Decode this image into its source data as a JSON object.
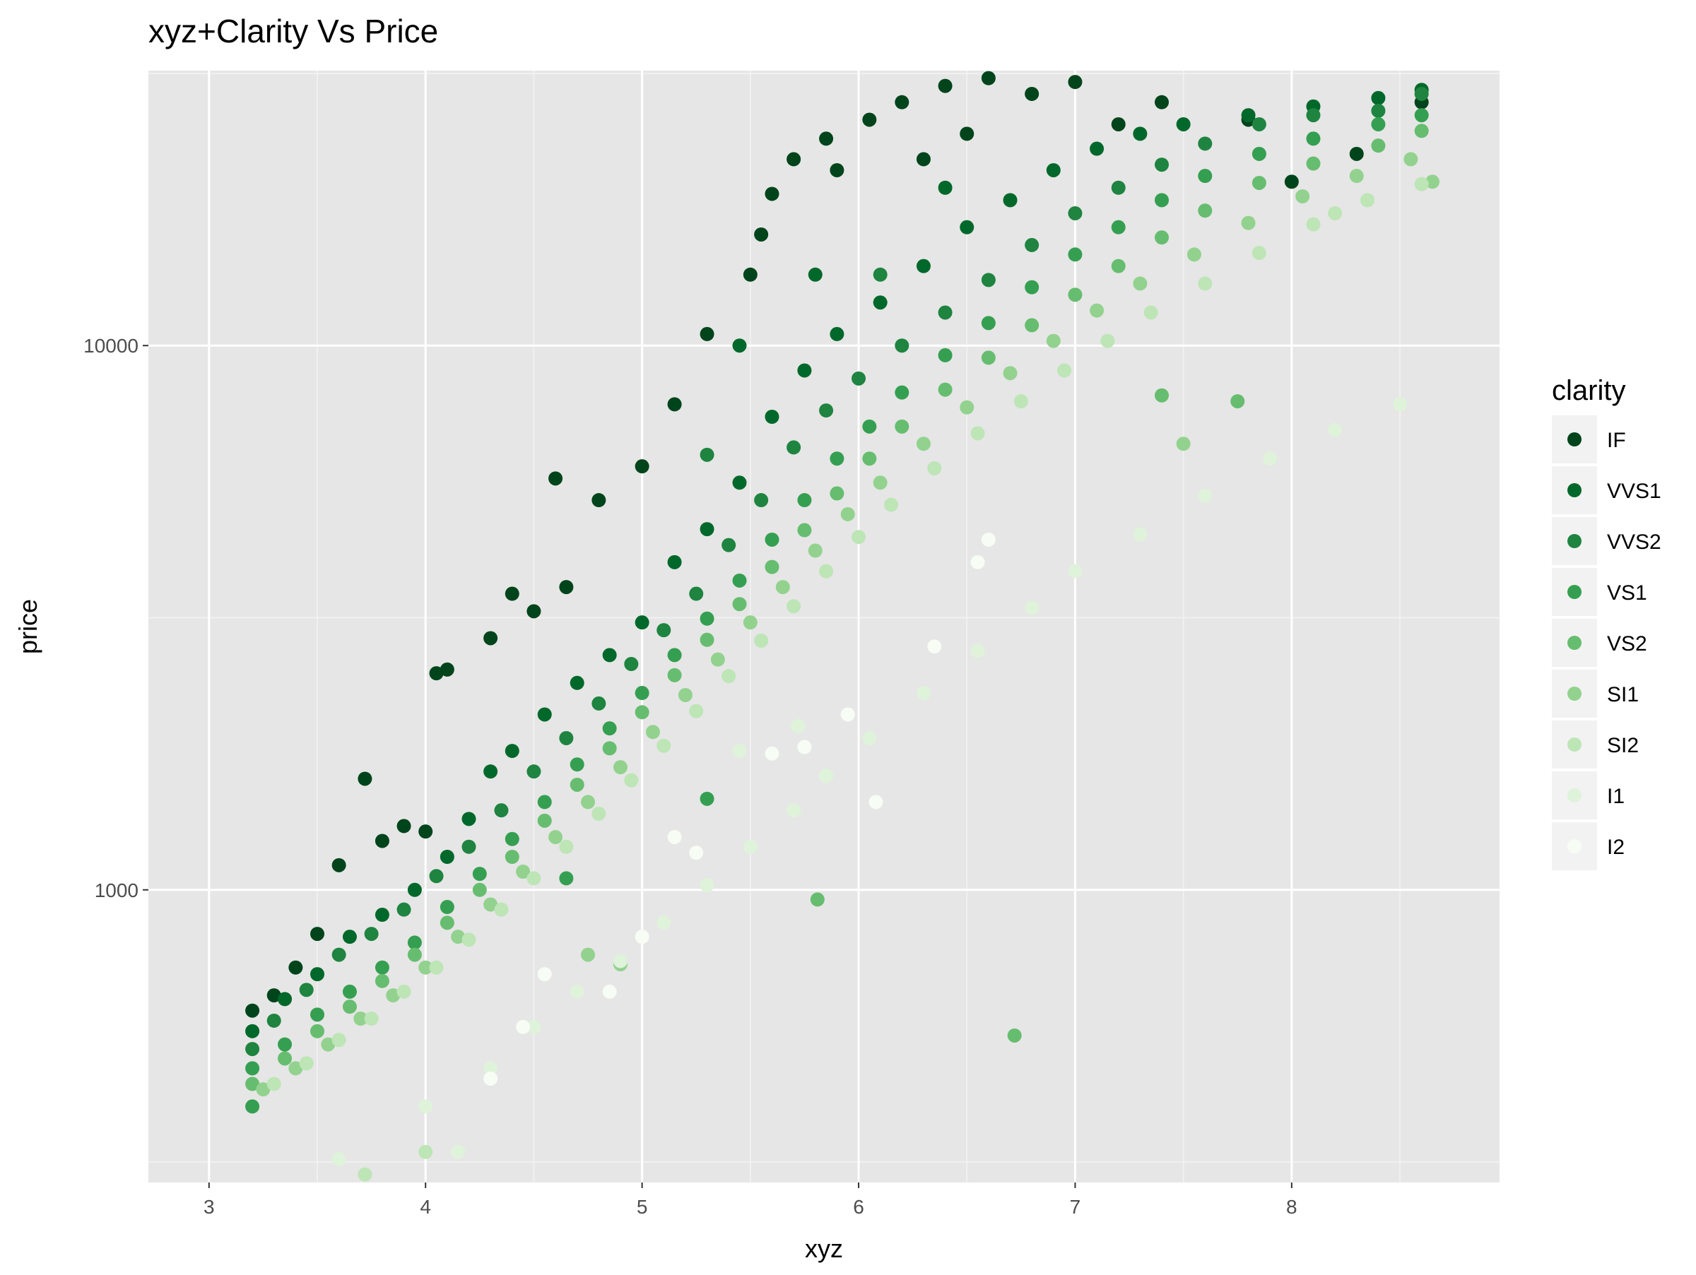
{
  "chart_data": {
    "type": "scatter",
    "title": "xyz+Clarity Vs Price",
    "xlabel": "xyz",
    "ylabel": "price",
    "xlim": [
      2.72,
      8.96
    ],
    "ylim": [
      290,
      32000
    ],
    "y_scale": "log10",
    "x_ticks": [
      "3",
      "4",
      "5",
      "6",
      "7",
      "8"
    ],
    "y_ticks": [
      "1000",
      "10000"
    ],
    "grid": true,
    "panel_background": "#e6e6e6",
    "legend": {
      "title": "clarity",
      "placement": "right",
      "entries": [
        "IF",
        "VVS1",
        "VVS2",
        "VS1",
        "VS2",
        "SI1",
        "SI2",
        "I1",
        "I2"
      ]
    },
    "colors": {
      "IF": "#00441b",
      "VVS1": "#00682a",
      "VVS2": "#1e8440",
      "VS1": "#359f51",
      "VS2": "#67bd6f",
      "SI1": "#92d28e",
      "SI2": "#bde5b6",
      "I1": "#def3da",
      "I2": "#f7fcf5"
    },
    "series": [
      {
        "name": "IF",
        "points": [
          [
            3.2,
            600
          ],
          [
            3.3,
            640
          ],
          [
            3.4,
            720
          ],
          [
            3.5,
            830
          ],
          [
            3.6,
            1110
          ],
          [
            3.72,
            1600
          ],
          [
            3.8,
            1230
          ],
          [
            3.9,
            1310
          ],
          [
            4.0,
            1280
          ],
          [
            4.05,
            2500
          ],
          [
            4.1,
            2540
          ],
          [
            4.3,
            2900
          ],
          [
            4.4,
            3500
          ],
          [
            4.5,
            3250
          ],
          [
            4.65,
            3600
          ],
          [
            4.6,
            5700
          ],
          [
            4.8,
            5200
          ],
          [
            5.0,
            6000
          ],
          [
            5.15,
            7800
          ],
          [
            5.3,
            10500
          ],
          [
            5.5,
            13500
          ],
          [
            5.55,
            16000
          ],
          [
            5.6,
            19000
          ],
          [
            5.7,
            22000
          ],
          [
            5.85,
            24000
          ],
          [
            6.05,
            26000
          ],
          [
            6.2,
            28000
          ],
          [
            6.4,
            30000
          ],
          [
            6.6,
            31000
          ],
          [
            6.8,
            29000
          ],
          [
            7.0,
            30500
          ],
          [
            7.4,
            28000
          ],
          [
            7.8,
            26000
          ],
          [
            8.0,
            20000
          ],
          [
            8.3,
            22500
          ],
          [
            8.6,
            28000
          ],
          [
            6.3,
            22000
          ],
          [
            5.9,
            21000
          ],
          [
            6.5,
            24500
          ],
          [
            7.2,
            25500
          ]
        ]
      },
      {
        "name": "VVS1",
        "points": [
          [
            3.2,
            550
          ],
          [
            3.35,
            630
          ],
          [
            3.5,
            700
          ],
          [
            3.65,
            820
          ],
          [
            3.8,
            900
          ],
          [
            3.95,
            1000
          ],
          [
            4.1,
            1150
          ],
          [
            4.2,
            1350
          ],
          [
            4.3,
            1650
          ],
          [
            4.4,
            1800
          ],
          [
            4.55,
            2100
          ],
          [
            4.7,
            2400
          ],
          [
            4.85,
            2700
          ],
          [
            5.0,
            3100
          ],
          [
            5.15,
            4000
          ],
          [
            5.3,
            4600
          ],
          [
            5.45,
            5600
          ],
          [
            5.6,
            7400
          ],
          [
            5.75,
            9000
          ],
          [
            5.9,
            10500
          ],
          [
            6.1,
            12000
          ],
          [
            6.3,
            14000
          ],
          [
            6.5,
            16500
          ],
          [
            6.7,
            18500
          ],
          [
            6.9,
            21000
          ],
          [
            7.1,
            23000
          ],
          [
            7.3,
            24500
          ],
          [
            7.5,
            25500
          ],
          [
            7.8,
            26500
          ],
          [
            8.1,
            27500
          ],
          [
            8.4,
            28500
          ],
          [
            8.6,
            29500
          ],
          [
            5.45,
            10000
          ],
          [
            5.8,
            13500
          ],
          [
            6.4,
            19500
          ]
        ]
      },
      {
        "name": "VVS2",
        "points": [
          [
            3.2,
            510
          ],
          [
            3.3,
            575
          ],
          [
            3.45,
            655
          ],
          [
            3.6,
            760
          ],
          [
            3.75,
            830
          ],
          [
            3.9,
            920
          ],
          [
            4.05,
            1060
          ],
          [
            4.2,
            1200
          ],
          [
            4.35,
            1400
          ],
          [
            4.5,
            1650
          ],
          [
            4.65,
            1900
          ],
          [
            4.8,
            2200
          ],
          [
            4.95,
            2600
          ],
          [
            5.1,
            3000
          ],
          [
            5.25,
            3500
          ],
          [
            5.4,
            4300
          ],
          [
            5.55,
            5200
          ],
          [
            5.7,
            6500
          ],
          [
            5.85,
            7600
          ],
          [
            6.0,
            8700
          ],
          [
            6.2,
            10000
          ],
          [
            6.4,
            11500
          ],
          [
            6.6,
            13200
          ],
          [
            6.8,
            15300
          ],
          [
            7.0,
            17500
          ],
          [
            7.2,
            19500
          ],
          [
            7.4,
            21500
          ],
          [
            7.6,
            23500
          ],
          [
            7.85,
            25500
          ],
          [
            8.1,
            26500
          ],
          [
            8.4,
            27000
          ],
          [
            8.6,
            29000
          ],
          [
            5.3,
            6300
          ],
          [
            6.1,
            13500
          ]
        ]
      },
      {
        "name": "VS1",
        "points": [
          [
            3.2,
            470
          ],
          [
            3.35,
            520
          ],
          [
            3.5,
            590
          ],
          [
            3.65,
            650
          ],
          [
            3.8,
            720
          ],
          [
            3.95,
            800
          ],
          [
            4.1,
            930
          ],
          [
            4.25,
            1070
          ],
          [
            4.4,
            1240
          ],
          [
            4.55,
            1450
          ],
          [
            4.7,
            1700
          ],
          [
            4.85,
            1980
          ],
          [
            5.0,
            2300
          ],
          [
            5.15,
            2700
          ],
          [
            5.3,
            3150
          ],
          [
            5.45,
            3700
          ],
          [
            5.6,
            4400
          ],
          [
            5.75,
            5200
          ],
          [
            5.9,
            6200
          ],
          [
            6.05,
            7100
          ],
          [
            6.2,
            8200
          ],
          [
            6.4,
            9600
          ],
          [
            6.6,
            11000
          ],
          [
            6.8,
            12800
          ],
          [
            7.0,
            14700
          ],
          [
            7.2,
            16500
          ],
          [
            7.4,
            18500
          ],
          [
            7.6,
            20500
          ],
          [
            7.85,
            22500
          ],
          [
            8.1,
            24000
          ],
          [
            8.4,
            25500
          ],
          [
            8.6,
            26500
          ],
          [
            5.3,
            1470
          ],
          [
            3.2,
            400
          ],
          [
            4.65,
            1050
          ]
        ]
      },
      {
        "name": "VS2",
        "points": [
          [
            3.2,
            440
          ],
          [
            3.35,
            490
          ],
          [
            3.5,
            550
          ],
          [
            3.65,
            610
          ],
          [
            3.8,
            680
          ],
          [
            3.95,
            760
          ],
          [
            4.1,
            870
          ],
          [
            4.25,
            1000
          ],
          [
            4.4,
            1150
          ],
          [
            4.55,
            1340
          ],
          [
            4.7,
            1560
          ],
          [
            4.85,
            1820
          ],
          [
            5.0,
            2120
          ],
          [
            5.15,
            2480
          ],
          [
            5.3,
            2880
          ],
          [
            5.45,
            3350
          ],
          [
            5.6,
            3920
          ],
          [
            5.75,
            4580
          ],
          [
            5.9,
            5350
          ],
          [
            6.05,
            6200
          ],
          [
            6.2,
            7100
          ],
          [
            6.4,
            8300
          ],
          [
            6.6,
            9500
          ],
          [
            6.8,
            10900
          ],
          [
            7.0,
            12400
          ],
          [
            7.2,
            14000
          ],
          [
            7.4,
            15800
          ],
          [
            7.6,
            17700
          ],
          [
            7.85,
            19900
          ],
          [
            8.1,
            21600
          ],
          [
            8.4,
            23300
          ],
          [
            8.6,
            24800
          ],
          [
            6.72,
            540
          ],
          [
            5.81,
            960
          ],
          [
            7.75,
            7900
          ],
          [
            7.4,
            8100
          ]
        ]
      },
      {
        "name": "SI1",
        "points": [
          [
            3.25,
            430
          ],
          [
            3.4,
            470
          ],
          [
            3.55,
            520
          ],
          [
            3.7,
            580
          ],
          [
            3.85,
            640
          ],
          [
            4.0,
            720
          ],
          [
            4.15,
            820
          ],
          [
            4.3,
            940
          ],
          [
            4.45,
            1080
          ],
          [
            4.6,
            1250
          ],
          [
            4.75,
            1450
          ],
          [
            4.9,
            1680
          ],
          [
            5.05,
            1950
          ],
          [
            5.2,
            2280
          ],
          [
            5.35,
            2650
          ],
          [
            5.5,
            3100
          ],
          [
            5.65,
            3600
          ],
          [
            5.8,
            4200
          ],
          [
            5.95,
            4900
          ],
          [
            6.1,
            5600
          ],
          [
            6.3,
            6600
          ],
          [
            6.5,
            7700
          ],
          [
            6.7,
            8900
          ],
          [
            6.9,
            10200
          ],
          [
            7.1,
            11600
          ],
          [
            7.3,
            13000
          ],
          [
            7.55,
            14700
          ],
          [
            7.8,
            16800
          ],
          [
            8.05,
            18800
          ],
          [
            8.3,
            20500
          ],
          [
            8.55,
            22000
          ],
          [
            8.65,
            20000
          ],
          [
            4.9,
            730
          ],
          [
            4.75,
            760
          ],
          [
            7.5,
            6600
          ]
        ]
      },
      {
        "name": "SI2",
        "points": [
          [
            3.3,
            440
          ],
          [
            3.45,
            480
          ],
          [
            3.6,
            530
          ],
          [
            3.75,
            580
          ],
          [
            3.9,
            650
          ],
          [
            4.05,
            720
          ],
          [
            4.2,
            810
          ],
          [
            4.35,
            920
          ],
          [
            4.5,
            1050
          ],
          [
            4.65,
            1200
          ],
          [
            4.8,
            1380
          ],
          [
            4.95,
            1590
          ],
          [
            5.1,
            1840
          ],
          [
            5.25,
            2130
          ],
          [
            5.4,
            2470
          ],
          [
            5.55,
            2870
          ],
          [
            5.7,
            3320
          ],
          [
            5.85,
            3850
          ],
          [
            6.0,
            4450
          ],
          [
            6.15,
            5100
          ],
          [
            6.35,
            5950
          ],
          [
            6.55,
            6900
          ],
          [
            6.75,
            7900
          ],
          [
            6.95,
            9000
          ],
          [
            7.15,
            10200
          ],
          [
            7.35,
            11500
          ],
          [
            7.6,
            13000
          ],
          [
            7.85,
            14800
          ],
          [
            8.1,
            16700
          ],
          [
            8.35,
            18500
          ],
          [
            8.6,
            19800
          ],
          [
            3.72,
            300
          ],
          [
            4.0,
            330
          ],
          [
            8.2,
            17500
          ]
        ]
      },
      {
        "name": "I1",
        "points": [
          [
            3.6,
            320
          ],
          [
            4.0,
            400
          ],
          [
            4.15,
            330
          ],
          [
            4.3,
            470
          ],
          [
            4.5,
            560
          ],
          [
            4.7,
            650
          ],
          [
            4.9,
            740
          ],
          [
            5.1,
            870
          ],
          [
            5.3,
            1020
          ],
          [
            5.5,
            1200
          ],
          [
            5.7,
            1400
          ],
          [
            5.85,
            1620
          ],
          [
            6.05,
            1900
          ],
          [
            6.3,
            2300
          ],
          [
            6.55,
            2750
          ],
          [
            6.8,
            3300
          ],
          [
            7.0,
            3850
          ],
          [
            7.3,
            4500
          ],
          [
            7.6,
            5300
          ],
          [
            7.9,
            6200
          ],
          [
            8.2,
            7000
          ],
          [
            8.5,
            7800
          ],
          [
            5.72,
            2000
          ],
          [
            5.45,
            1800
          ]
        ]
      },
      {
        "name": "I2",
        "points": [
          [
            4.3,
            450
          ],
          [
            4.45,
            560
          ],
          [
            4.85,
            650
          ],
          [
            5.0,
            820
          ],
          [
            5.25,
            1170
          ],
          [
            5.6,
            1780
          ],
          [
            5.75,
            1830
          ],
          [
            5.95,
            2100
          ],
          [
            6.08,
            1450
          ],
          [
            6.35,
            2800
          ],
          [
            6.55,
            4000
          ],
          [
            6.6,
            4400
          ],
          [
            4.55,
            700
          ],
          [
            5.15,
            1250
          ]
        ]
      }
    ]
  }
}
